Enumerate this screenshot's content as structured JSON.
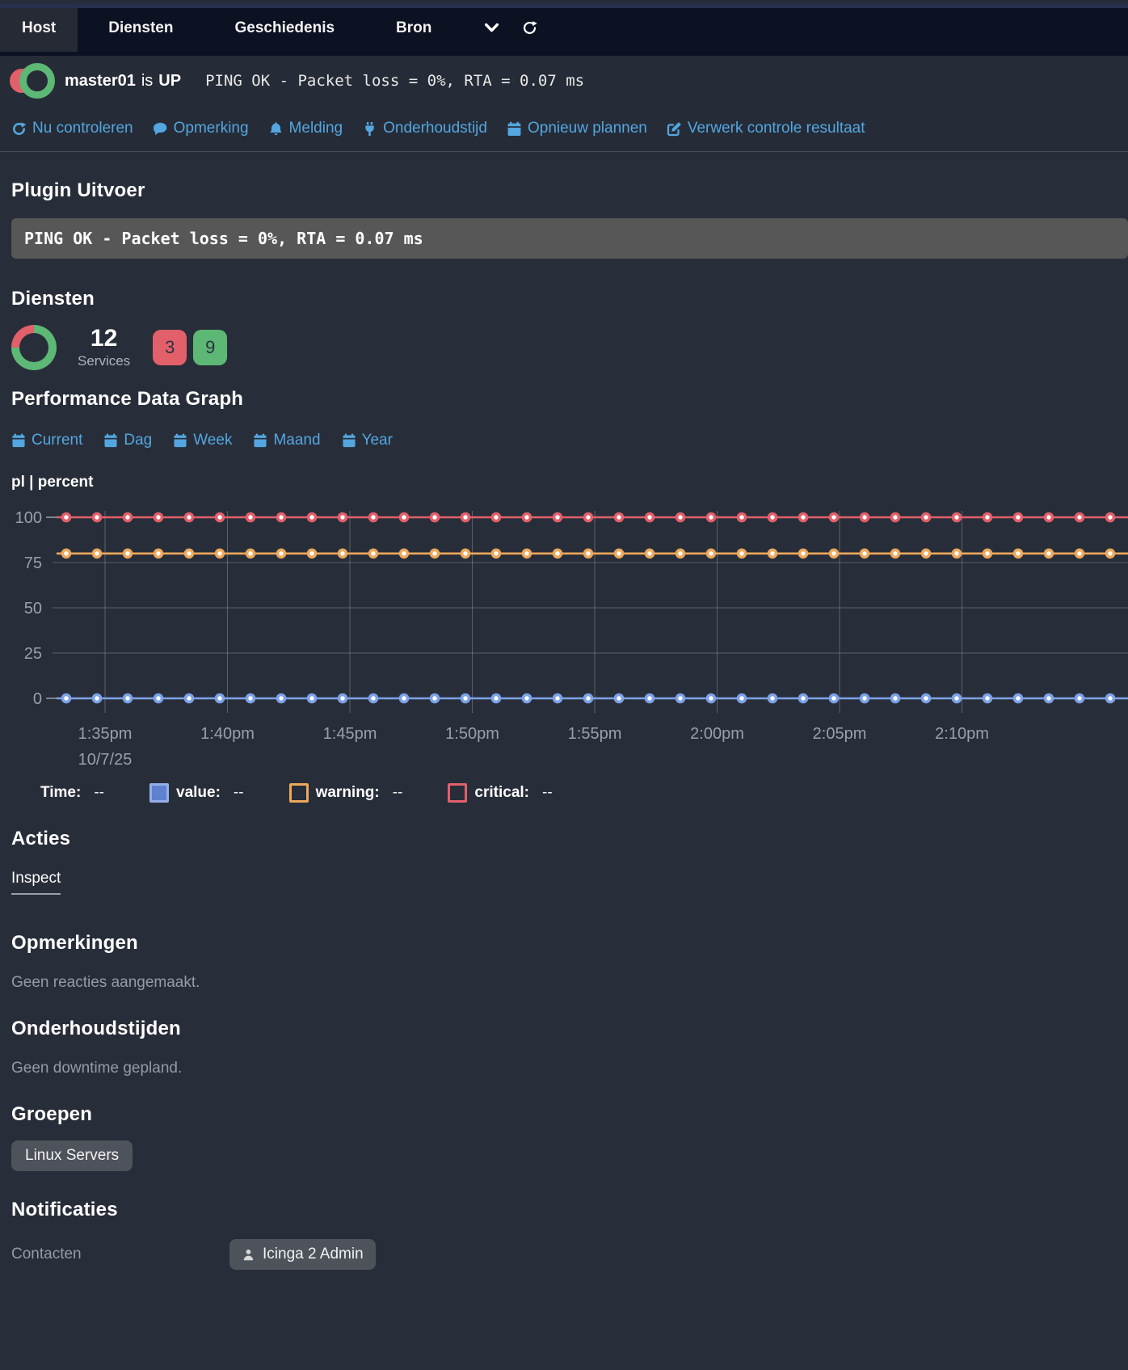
{
  "nav": {
    "tabs": [
      {
        "label": "Host",
        "active": true
      },
      {
        "label": "Diensten",
        "active": false
      },
      {
        "label": "Geschiedenis",
        "active": false
      },
      {
        "label": "Bron",
        "active": false
      }
    ],
    "icons": [
      "chevron-down-icon",
      "refresh-icon"
    ]
  },
  "status": {
    "host": "master01",
    "verb": "is",
    "state": "UP",
    "output": "PING OK - Packet loss = 0%, RTA = 0.07 ms"
  },
  "actions": [
    {
      "icon": "sync-icon",
      "label": "Nu controleren"
    },
    {
      "icon": "comment-icon",
      "label": "Opmerking"
    },
    {
      "icon": "bell-icon",
      "label": "Melding"
    },
    {
      "icon": "plug-icon",
      "label": "Onderhoudstijd"
    },
    {
      "icon": "calendar-icon",
      "label": "Opnieuw plannen"
    },
    {
      "icon": "edit-icon",
      "label": "Verwerk controle resultaat"
    }
  ],
  "plugin_output": {
    "heading": "Plugin Uitvoer",
    "text": "PING OK - Packet loss = 0%, RTA = 0.07 ms"
  },
  "services": {
    "heading": "Diensten",
    "count": "12",
    "unit": "Services",
    "critical_count": "3",
    "ok_count": "9"
  },
  "perf": {
    "heading": "Performance Data Graph",
    "ranges": [
      "Current",
      "Dag",
      "Week",
      "Maand",
      "Year"
    ],
    "metric_label": "pl | percent"
  },
  "chart_data": {
    "type": "line",
    "title": "pl | percent",
    "ylabel": "percent",
    "ylim": [
      0,
      100
    ],
    "y_ticks": [
      100,
      75,
      50,
      25,
      0
    ],
    "x_ticks": [
      "1:35pm",
      "1:40pm",
      "1:45pm",
      "1:50pm",
      "1:55pm",
      "2:00pm",
      "2:05pm",
      "2:10pm"
    ],
    "x_date": "10/7/25",
    "grid": true,
    "series": [
      {
        "name": "critical",
        "constant": true,
        "value": 100,
        "color": "#e2606a"
      },
      {
        "name": "warning",
        "constant": true,
        "value": 80,
        "color": "#eda85c"
      },
      {
        "name": "value",
        "constant": true,
        "value": 0,
        "color": "#7da2e8"
      }
    ]
  },
  "legend": {
    "time_label": "Time:",
    "time_value": "--",
    "items": [
      {
        "label": "value:",
        "value": "--",
        "border": "#94aee8",
        "fill": "#5f81cf"
      },
      {
        "label": "warning:",
        "value": "--",
        "border": "#eda85c",
        "fill": "transparent"
      },
      {
        "label": "critical:",
        "value": "--",
        "border": "#e2606a",
        "fill": "transparent"
      }
    ]
  },
  "sections": {
    "acties": {
      "heading": "Acties",
      "link": "Inspect"
    },
    "opmerkingen": {
      "heading": "Opmerkingen",
      "text": "Geen reacties aangemaakt."
    },
    "onderhoudstijden": {
      "heading": "Onderhoudstijden",
      "text": "Geen downtime gepland."
    },
    "groepen": {
      "heading": "Groepen",
      "chip": "Linux Servers"
    },
    "notificaties": {
      "heading": "Notificaties",
      "contacts_label": "Contacten",
      "contact": "Icinga 2 Admin"
    }
  },
  "colors": {
    "link_blue": "#53a6e0",
    "critical_red": "#e2606a",
    "ok_green": "#5cb874",
    "warning_orange": "#eda85c",
    "value_blue": "#7da2e8",
    "nav_bg": "#0c1222",
    "page_bg": "#282e39",
    "output_box_bg": "#575757",
    "chip_bg": "#4d525b"
  }
}
